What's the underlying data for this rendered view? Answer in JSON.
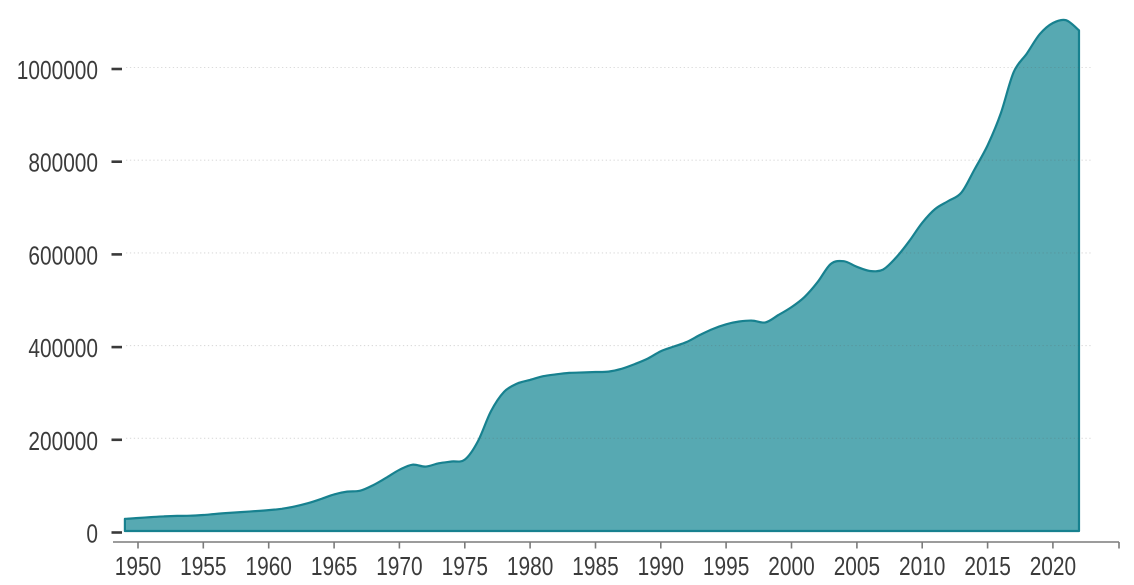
{
  "chart_data": {
    "type": "area",
    "title": "",
    "xlabel": "",
    "ylabel": "",
    "legend_position": "none",
    "grid": "horizontal-dotted",
    "xlim": [
      1948,
      2025
    ],
    "ylim": [
      0,
      1150000
    ],
    "years": [
      1949,
      1950,
      1951,
      1952,
      1953,
      1954,
      1955,
      1956,
      1957,
      1958,
      1959,
      1960,
      1961,
      1962,
      1963,
      1964,
      1965,
      1966,
      1967,
      1968,
      1969,
      1970,
      1971,
      1972,
      1973,
      1974,
      1975,
      1976,
      1977,
      1978,
      1979,
      1980,
      1981,
      1982,
      1983,
      1984,
      1985,
      1986,
      1987,
      1988,
      1989,
      1990,
      1991,
      1992,
      1993,
      1994,
      1995,
      1996,
      1997,
      1998,
      1999,
      2000,
      2001,
      2002,
      2003,
      2004,
      2005,
      2006,
      2007,
      2008,
      2009,
      2010,
      2011,
      2012,
      2013,
      2014,
      2015,
      2016,
      2017,
      2018,
      2019,
      2020,
      2021,
      2022
    ],
    "values": [
      26000,
      28000,
      30000,
      31500,
      32500,
      33000,
      34500,
      37000,
      39000,
      41000,
      43000,
      45000,
      48000,
      53000,
      60000,
      69000,
      79000,
      85000,
      87000,
      99000,
      115000,
      132000,
      143000,
      139000,
      146000,
      150000,
      154000,
      193000,
      258000,
      300000,
      318000,
      326000,
      334000,
      338000,
      341000,
      342000,
      343000,
      344000,
      350000,
      360000,
      372000,
      388000,
      398000,
      408000,
      423000,
      436000,
      446000,
      452000,
      454000,
      450000,
      466000,
      483000,
      505000,
      537000,
      576000,
      582000,
      570000,
      561000,
      564000,
      590000,
      625000,
      665000,
      695000,
      712000,
      730000,
      780000,
      832000,
      900000,
      990000,
      1030000,
      1072000,
      1096000,
      1102000,
      1080000
    ],
    "y_ticks": [
      0,
      200000,
      400000,
      600000,
      800000,
      1000000
    ],
    "y_tick_labels": [
      "0",
      "200000",
      "400000",
      "600000",
      "800000",
      "1000000"
    ],
    "x_ticks": [
      1950,
      1955,
      1960,
      1965,
      1970,
      1975,
      1980,
      1985,
      1990,
      1995,
      2000,
      2005,
      2010,
      2015,
      2020
    ],
    "x_tick_labels": [
      "1950",
      "1955",
      "1960",
      "1965",
      "1970",
      "1975",
      "1980",
      "1985",
      "1990",
      "1995",
      "2000",
      "2005",
      "2010",
      "2015",
      "2020"
    ],
    "colors": {
      "area_fill": "#57a9b2",
      "area_stroke": "#17818f",
      "axis_line": "#7b7b7b",
      "tick_label": "#3b3b3b",
      "y_tick_dash": "#3a3a3a",
      "gridline": "#dcdcdc",
      "background": "#ffffff"
    }
  }
}
